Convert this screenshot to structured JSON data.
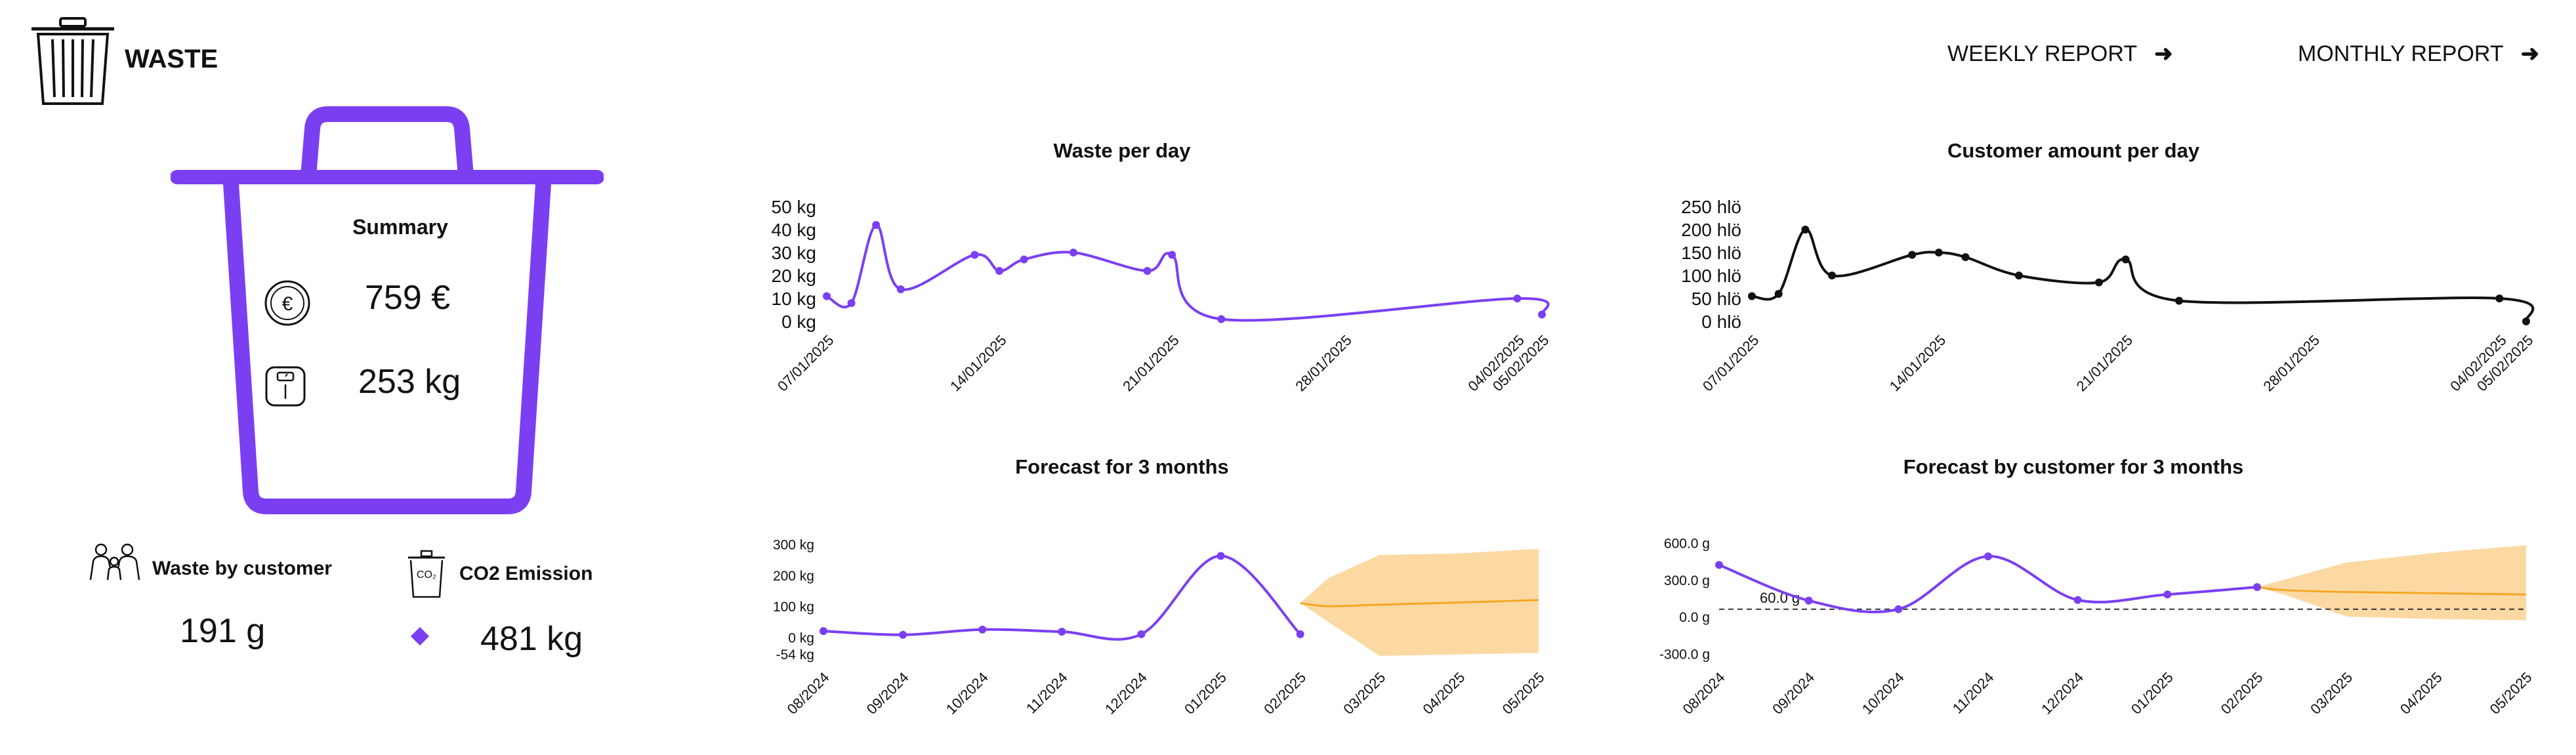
{
  "header": {
    "title": "WASTE",
    "weekly_report": "WEEKLY REPORT",
    "monthly_report": "MONTHLY REPORT"
  },
  "summary": {
    "title": "Summary",
    "cost": "759 €",
    "weight": "253 kg",
    "waste_by_customer_label": "Waste by customer",
    "waste_by_customer_value": "191 g",
    "co2_label": "CO2 Emission",
    "co2_value": "481 kg",
    "co2_icon_text": "CO₂",
    "colors": {
      "accent": "#7b3ff2",
      "forecast_band": "#fcd9a3",
      "forecast_line": "#f6a623"
    }
  },
  "chart_data": [
    {
      "type": "line",
      "title": "Waste per day",
      "y_ticks": [
        "0 kg",
        "10 kg",
        "20 kg",
        "30 kg",
        "40 kg",
        "50 kg"
      ],
      "ylim": [
        0,
        50
      ],
      "x_ticks": [
        "07/01/2025",
        "14/01/2025",
        "21/01/2025",
        "28/01/2025",
        "04/02/2025",
        "05/02/2025"
      ],
      "x_tick_dates": [
        "2025-01-07",
        "2025-01-14",
        "2025-01-21",
        "2025-01-28",
        "2025-02-04",
        "2025-02-05"
      ],
      "series": [
        {
          "color": "#7b3ff2",
          "x": [
            "2025-01-07",
            "2025-01-08",
            "2025-01-09",
            "2025-01-10",
            "2025-01-13",
            "2025-01-14",
            "2025-01-15",
            "2025-01-17",
            "2025-01-20",
            "2025-01-21",
            "2025-01-23",
            "2025-02-04",
            "2025-02-05"
          ],
          "y": [
            11,
            8,
            42,
            14,
            29,
            22,
            27,
            30,
            22,
            29,
            1,
            10,
            3
          ]
        }
      ]
    },
    {
      "type": "line",
      "title": "Customer amount per day",
      "y_ticks": [
        "0 hlö",
        "50 hlö",
        "100 hlö",
        "150 hlö",
        "200 hlö",
        "250 hlö"
      ],
      "ylim": [
        0,
        250
      ],
      "x_ticks": [
        "07/01/2025",
        "14/01/2025",
        "21/01/2025",
        "28/01/2025",
        "04/02/2025",
        "05/02/2025"
      ],
      "x_tick_dates": [
        "2025-01-07",
        "2025-01-14",
        "2025-01-21",
        "2025-01-28",
        "2025-02-04",
        "2025-02-05"
      ],
      "series": [
        {
          "color": "#111111",
          "x": [
            "2025-01-07",
            "2025-01-08",
            "2025-01-09",
            "2025-01-10",
            "2025-01-13",
            "2025-01-14",
            "2025-01-15",
            "2025-01-17",
            "2025-01-20",
            "2025-01-21",
            "2025-01-23",
            "2025-02-04",
            "2025-02-05"
          ],
          "y": [
            55,
            60,
            200,
            100,
            145,
            150,
            140,
            100,
            85,
            135,
            45,
            50,
            0
          ]
        }
      ]
    },
    {
      "type": "line",
      "title": "Forecast for 3 months",
      "y_ticks": [
        {
          "label": "300 kg",
          "value": 300
        },
        {
          "label": "200 kg",
          "value": 200
        },
        {
          "label": "100 kg",
          "value": 100
        },
        {
          "label": "0 kg",
          "value": 0
        },
        {
          "label": "-54 kg",
          "value": -54
        }
      ],
      "ylim": [
        -60,
        320
      ],
      "x_ticks": [
        "08/2024",
        "09/2024",
        "10/2024",
        "11/2024",
        "12/2024",
        "01/2025",
        "02/2025",
        "03/2025",
        "04/2025",
        "05/2025"
      ],
      "series": [
        {
          "color": "#7b3ff2",
          "x_index": [
            0,
            1,
            2,
            3,
            4,
            5,
            6
          ],
          "y": [
            20,
            8,
            25,
            18,
            10,
            262,
            10
          ]
        }
      ],
      "forecast": {
        "x_index": [
          6,
          6.35,
          7,
          8,
          9
        ],
        "y": [
          110,
          100,
          105,
          112,
          120
        ],
        "lower": [
          110,
          50,
          -60,
          -55,
          -50
        ],
        "upper": [
          110,
          190,
          265,
          270,
          285
        ]
      }
    },
    {
      "type": "line",
      "title": "Forecast by customer for 3 months",
      "y_ticks": [
        {
          "label": "600.0 g",
          "value": 600
        },
        {
          "label": "300.0 g",
          "value": 300
        },
        {
          "label": "0.0 g",
          "value": 0
        },
        {
          "label": "-300.0 g",
          "value": -300
        }
      ],
      "ylim": [
        -320,
        640
      ],
      "x_ticks": [
        "08/2024",
        "09/2024",
        "10/2024",
        "11/2024",
        "12/2024",
        "01/2025",
        "02/2025",
        "03/2025",
        "04/2025",
        "05/2025"
      ],
      "series": [
        {
          "color": "#7b3ff2",
          "x_index": [
            0,
            1,
            2,
            3,
            4,
            5,
            6
          ],
          "y": [
            420,
            130,
            60,
            490,
            135,
            180,
            240
          ]
        }
      ],
      "reference_line": {
        "value": 60,
        "label": "60.0 g"
      },
      "forecast": {
        "x_index": [
          6,
          6.3,
          7,
          8,
          9
        ],
        "y": [
          240,
          215,
          200,
          190,
          180
        ],
        "lower": [
          240,
          180,
          0,
          -20,
          -30
        ],
        "upper": [
          240,
          300,
          440,
          520,
          580
        ]
      }
    }
  ]
}
